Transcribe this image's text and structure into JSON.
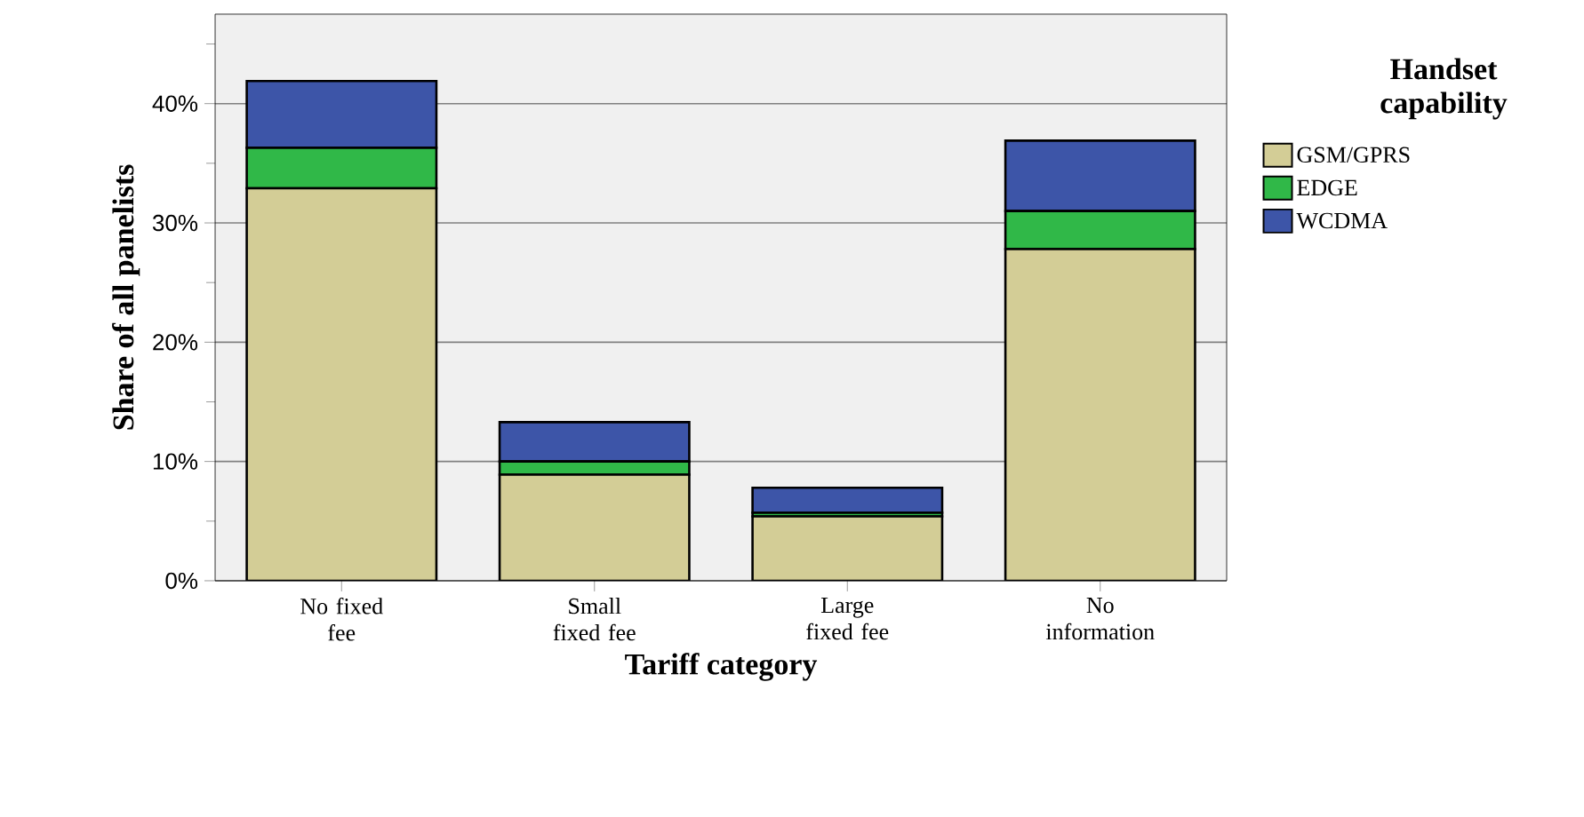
{
  "chart_data": {
    "type": "bar",
    "stacked": true,
    "xlabel": "Tariff category",
    "ylabel": "Share of all panelists",
    "legend_title": "Handset capability",
    "categories": [
      "No fixed fee",
      "Small fixed fee",
      "Large fixed fee",
      "No information"
    ],
    "series": [
      {
        "name": "GSM/GPRS",
        "color": "#d3cd96",
        "values": [
          32.9,
          8.9,
          5.4,
          27.8
        ]
      },
      {
        "name": "EDGE",
        "color": "#30b848",
        "values": [
          3.4,
          1.1,
          0.3,
          3.2
        ]
      },
      {
        "name": "WCDMA",
        "color": "#3d55a8",
        "values": [
          5.6,
          3.3,
          2.1,
          5.9
        ]
      }
    ],
    "ylim": [
      0,
      47.5
    ],
    "yticks": [
      {
        "value": 0,
        "label": "0%"
      },
      {
        "value": 5,
        "label": null
      },
      {
        "value": 10,
        "label": "10%"
      },
      {
        "value": 15,
        "label": null
      },
      {
        "value": 20,
        "label": "20%"
      },
      {
        "value": 25,
        "label": null
      },
      {
        "value": 30,
        "label": "30%"
      },
      {
        "value": 35,
        "label": null
      },
      {
        "value": 40,
        "label": "40%"
      },
      {
        "value": 45,
        "label": null
      }
    ],
    "grid": "y",
    "legend": "right"
  }
}
